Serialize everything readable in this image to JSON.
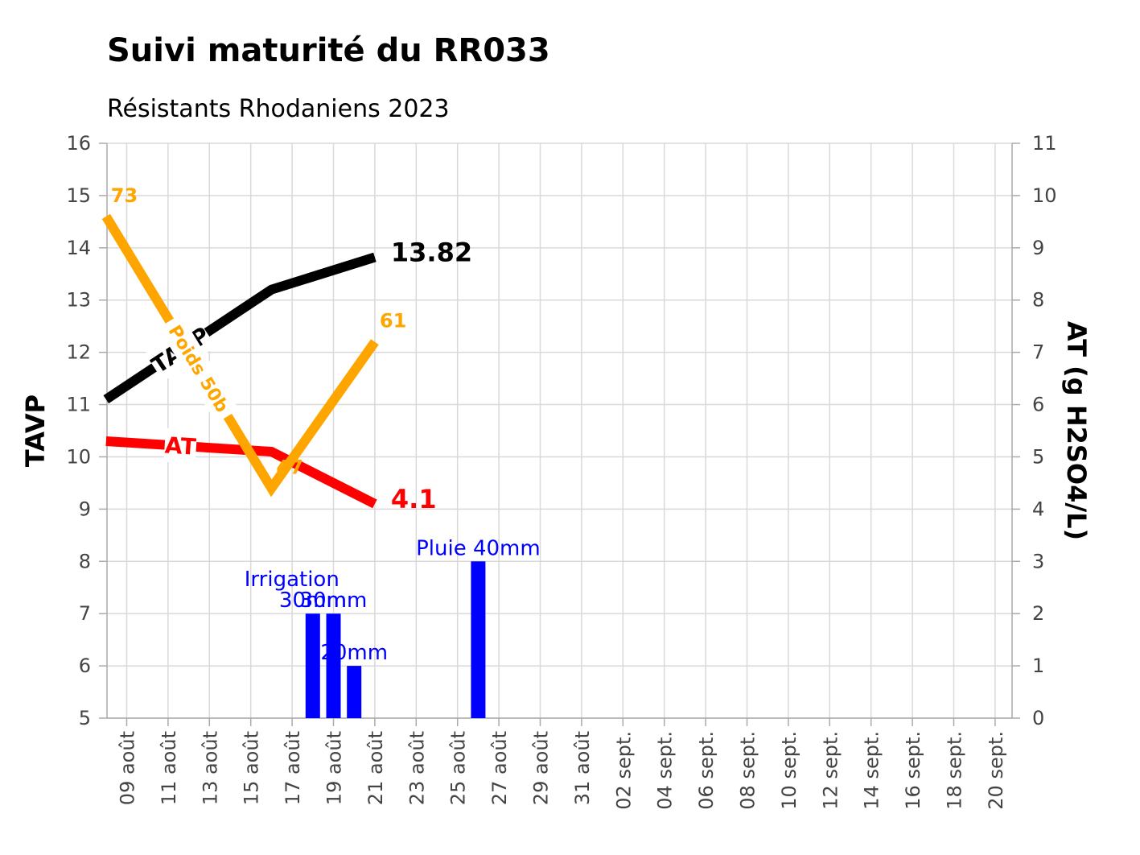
{
  "chart_data": {
    "type": "line",
    "title": "Suivi maturité du RR033",
    "subtitle": "Résistants Rhodaniens 2023",
    "ylabel": "TAVP",
    "y2label": "AT (g H2SO4/L)",
    "ylim": [
      5,
      16
    ],
    "y2lim": [
      0,
      11
    ],
    "y_ticks": [
      5,
      6,
      7,
      8,
      9,
      10,
      11,
      12,
      13,
      14,
      15,
      16
    ],
    "y2_ticks": [
      0,
      1,
      2,
      3,
      4,
      5,
      6,
      7,
      8,
      9,
      10,
      11
    ],
    "x_tick_labels": [
      "09 août",
      "11 août",
      "13 août",
      "15 août",
      "17 août",
      "19 août",
      "21 août",
      "23 août",
      "25 août",
      "27 août",
      "29 août",
      "31 août",
      "02 sept.",
      "04 sept.",
      "06 sept.",
      "08 sept.",
      "10 sept.",
      "12 sept.",
      "14 sept.",
      "16 sept.",
      "18 sept.",
      "20 sept."
    ],
    "grid": true,
    "series": [
      {
        "name": "TAVP",
        "axis": "left",
        "color": "#000000",
        "points": [
          [
            "08 août",
            11.1
          ],
          [
            "16 août",
            13.2
          ],
          [
            "21 août",
            13.82
          ]
        ],
        "end_label": "13.82"
      },
      {
        "name": "AT",
        "axis": "right",
        "color": "#ff0000",
        "points": [
          [
            "08 août",
            5.3
          ],
          [
            "16 août",
            5.1
          ],
          [
            "21 août",
            4.1
          ]
        ],
        "end_label": "4.1"
      },
      {
        "name": "Poids 50b",
        "axis": "left",
        "color": "#ffa500",
        "points": [
          [
            "08 août",
            14.6
          ],
          [
            "16 août",
            9.4
          ],
          [
            "21 août",
            12.2
          ]
        ],
        "point_labels": [
          "73",
          "47",
          "61"
        ]
      }
    ],
    "bars": {
      "axis": "right",
      "color": "#0000ff",
      "items": [
        {
          "date": "18 août",
          "value": 2,
          "label": "30mm"
        },
        {
          "date": "19 août",
          "value": 2,
          "label": "30mm"
        },
        {
          "date": "20 août",
          "value": 1,
          "label": "20mm"
        },
        {
          "date": "26 août",
          "value": 3,
          "label": "Pluie 40mm"
        }
      ],
      "annotation": "Irrigation"
    }
  }
}
